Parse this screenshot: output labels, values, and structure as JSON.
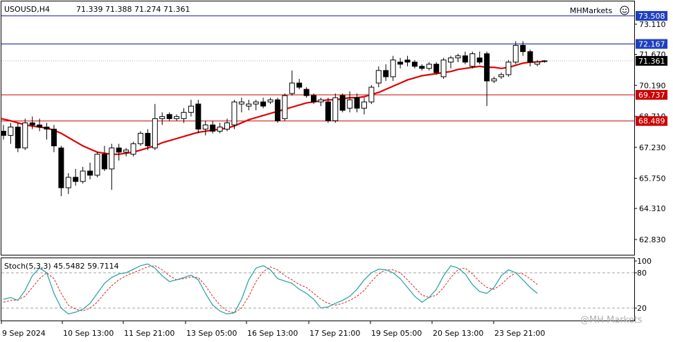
{
  "header": {
    "symbol_timeframe": "USOUSD,H4",
    "ohlc": "71.339 71.388 71.274 71.361",
    "broker": "MHMarkets"
  },
  "watermark": "@MH Markets",
  "colors": {
    "candle_body_bull": "#ffffff",
    "candle_body_bear": "#000000",
    "ma_line": "#e00000",
    "support_line": "#cc0000",
    "resistance_line": "#1010a0",
    "price_tag_blue": "#1f3fbf",
    "price_tag_red": "#cc0000",
    "price_tag_current": "#000000",
    "stoch_main": "#20a0a0",
    "stoch_signal": "#e02020"
  },
  "chart_data": {
    "type": "candlestick",
    "symbol": "USOUSD",
    "timeframe": "H4",
    "price_axis": {
      "ylim": [
        62.1,
        74.2
      ],
      "ticks": [
        "73.110",
        "71.670",
        "70.190",
        "68.710",
        "67.230",
        "65.750",
        "64.310",
        "62.830"
      ]
    },
    "time_axis": {
      "ticks": [
        "9 Sep 2024",
        "10 Sep 13:00",
        "11 Sep 21:00",
        "13 Sep 05:00",
        "16 Sep 13:00",
        "17 Sep 21:00",
        "19 Sep 05:00",
        "20 Sep 13:00",
        "23 Sep 21:00"
      ]
    },
    "horizontal_levels": [
      {
        "value": 73.508,
        "label": "73.508",
        "kind": "resistance"
      },
      {
        "value": 72.167,
        "label": "72.167",
        "kind": "resistance"
      },
      {
        "value": 69.737,
        "label": "69.737",
        "kind": "support"
      },
      {
        "value": 68.489,
        "label": "68.489",
        "kind": "support"
      }
    ],
    "current_price": {
      "value": 71.361,
      "label": "71.361"
    },
    "candles": [
      {
        "o": 68.0,
        "h": 68.3,
        "l": 67.6,
        "c": 67.8
      },
      {
        "o": 67.8,
        "h": 68.4,
        "l": 67.4,
        "c": 68.2
      },
      {
        "o": 68.2,
        "h": 68.4,
        "l": 67.0,
        "c": 67.2
      },
      {
        "o": 67.2,
        "h": 68.6,
        "l": 67.1,
        "c": 68.4
      },
      {
        "o": 68.4,
        "h": 68.7,
        "l": 68.1,
        "c": 68.3
      },
      {
        "o": 68.3,
        "h": 68.6,
        "l": 68.0,
        "c": 68.2
      },
      {
        "o": 68.2,
        "h": 68.4,
        "l": 67.6,
        "c": 68.1
      },
      {
        "o": 68.1,
        "h": 68.3,
        "l": 67.0,
        "c": 67.3
      },
      {
        "o": 67.2,
        "h": 67.3,
        "l": 64.9,
        "c": 65.3
      },
      {
        "o": 65.3,
        "h": 66.0,
        "l": 65.0,
        "c": 65.8
      },
      {
        "o": 65.8,
        "h": 66.2,
        "l": 65.4,
        "c": 65.6
      },
      {
        "o": 65.6,
        "h": 66.3,
        "l": 65.5,
        "c": 66.1
      },
      {
        "o": 66.1,
        "h": 66.5,
        "l": 65.7,
        "c": 65.9
      },
      {
        "o": 65.9,
        "h": 67.0,
        "l": 65.8,
        "c": 66.9
      },
      {
        "o": 66.9,
        "h": 67.3,
        "l": 66.1,
        "c": 66.2
      },
      {
        "o": 66.2,
        "h": 67.4,
        "l": 65.2,
        "c": 67.2
      },
      {
        "o": 67.2,
        "h": 67.4,
        "l": 66.6,
        "c": 67.0
      },
      {
        "o": 67.0,
        "h": 67.2,
        "l": 66.8,
        "c": 67.1
      },
      {
        "o": 66.9,
        "h": 67.5,
        "l": 66.8,
        "c": 67.4
      },
      {
        "o": 67.4,
        "h": 68.0,
        "l": 67.3,
        "c": 67.9
      },
      {
        "o": 67.9,
        "h": 68.1,
        "l": 67.1,
        "c": 67.3
      },
      {
        "o": 67.2,
        "h": 69.3,
        "l": 67.1,
        "c": 68.6
      },
      {
        "o": 68.6,
        "h": 68.9,
        "l": 68.3,
        "c": 68.7
      },
      {
        "o": 68.8,
        "h": 68.9,
        "l": 68.5,
        "c": 68.6
      },
      {
        "o": 68.6,
        "h": 68.8,
        "l": 68.5,
        "c": 68.7
      },
      {
        "o": 68.6,
        "h": 69.1,
        "l": 68.4,
        "c": 68.9
      },
      {
        "o": 68.9,
        "h": 69.5,
        "l": 68.7,
        "c": 69.2
      },
      {
        "o": 69.3,
        "h": 69.5,
        "l": 67.9,
        "c": 68.1
      },
      {
        "o": 68.1,
        "h": 68.5,
        "l": 67.8,
        "c": 68.3
      },
      {
        "o": 68.3,
        "h": 68.5,
        "l": 67.9,
        "c": 68.0
      },
      {
        "o": 68.0,
        "h": 68.4,
        "l": 67.9,
        "c": 68.2
      },
      {
        "o": 68.1,
        "h": 68.6,
        "l": 68.0,
        "c": 68.4
      },
      {
        "o": 68.3,
        "h": 69.5,
        "l": 68.1,
        "c": 69.4
      },
      {
        "o": 69.3,
        "h": 69.6,
        "l": 68.9,
        "c": 69.4
      },
      {
        "o": 69.2,
        "h": 69.5,
        "l": 69.0,
        "c": 69.3
      },
      {
        "o": 69.3,
        "h": 69.5,
        "l": 69.0,
        "c": 69.4
      },
      {
        "o": 69.4,
        "h": 69.6,
        "l": 69.1,
        "c": 69.2
      },
      {
        "o": 69.4,
        "h": 69.6,
        "l": 69.3,
        "c": 69.5
      },
      {
        "o": 69.5,
        "h": 69.6,
        "l": 68.4,
        "c": 68.5
      },
      {
        "o": 68.6,
        "h": 69.8,
        "l": 68.5,
        "c": 69.7
      },
      {
        "o": 69.8,
        "h": 70.9,
        "l": 69.7,
        "c": 70.3
      },
      {
        "o": 70.3,
        "h": 70.5,
        "l": 70.0,
        "c": 70.1
      },
      {
        "o": 70.0,
        "h": 70.1,
        "l": 69.6,
        "c": 69.7
      },
      {
        "o": 69.7,
        "h": 69.8,
        "l": 69.3,
        "c": 69.4
      },
      {
        "o": 69.4,
        "h": 69.6,
        "l": 69.2,
        "c": 69.5
      },
      {
        "o": 69.4,
        "h": 69.6,
        "l": 68.4,
        "c": 68.5
      },
      {
        "o": 68.5,
        "h": 69.8,
        "l": 68.4,
        "c": 69.6
      },
      {
        "o": 69.7,
        "h": 69.8,
        "l": 68.9,
        "c": 69.0
      },
      {
        "o": 69.1,
        "h": 69.9,
        "l": 68.9,
        "c": 69.5
      },
      {
        "o": 69.6,
        "h": 69.8,
        "l": 68.9,
        "c": 69.1
      },
      {
        "o": 69.1,
        "h": 69.6,
        "l": 68.8,
        "c": 69.4
      },
      {
        "o": 69.4,
        "h": 70.2,
        "l": 69.3,
        "c": 70.1
      },
      {
        "o": 70.3,
        "h": 71.1,
        "l": 70.1,
        "c": 70.9
      },
      {
        "o": 70.9,
        "h": 71.2,
        "l": 70.4,
        "c": 70.6
      },
      {
        "o": 70.6,
        "h": 71.6,
        "l": 70.4,
        "c": 71.4
      },
      {
        "o": 71.3,
        "h": 71.5,
        "l": 71.0,
        "c": 71.2
      },
      {
        "o": 71.4,
        "h": 71.6,
        "l": 71.1,
        "c": 71.3
      },
      {
        "o": 71.3,
        "h": 71.4,
        "l": 71.0,
        "c": 71.1
      },
      {
        "o": 71.1,
        "h": 71.2,
        "l": 70.9,
        "c": 71.0
      },
      {
        "o": 71.0,
        "h": 71.3,
        "l": 70.9,
        "c": 71.2
      },
      {
        "o": 71.2,
        "h": 71.3,
        "l": 70.7,
        "c": 70.8
      },
      {
        "o": 70.6,
        "h": 71.5,
        "l": 70.5,
        "c": 71.4
      },
      {
        "o": 71.3,
        "h": 71.6,
        "l": 71.0,
        "c": 71.5
      },
      {
        "o": 71.5,
        "h": 71.7,
        "l": 71.3,
        "c": 71.6
      },
      {
        "o": 71.6,
        "h": 71.8,
        "l": 71.2,
        "c": 71.3
      },
      {
        "o": 71.1,
        "h": 71.8,
        "l": 71.0,
        "c": 71.7
      },
      {
        "o": 71.5,
        "h": 71.8,
        "l": 71.2,
        "c": 71.3
      },
      {
        "o": 71.7,
        "h": 71.8,
        "l": 69.2,
        "c": 70.4
      },
      {
        "o": 70.4,
        "h": 70.6,
        "l": 70.3,
        "c": 70.5
      },
      {
        "o": 70.6,
        "h": 70.8,
        "l": 70.5,
        "c": 70.7
      },
      {
        "o": 70.7,
        "h": 71.4,
        "l": 70.6,
        "c": 71.3
      },
      {
        "o": 71.3,
        "h": 72.3,
        "l": 71.2,
        "c": 72.1
      },
      {
        "o": 72.1,
        "h": 72.3,
        "l": 71.6,
        "c": 71.8
      },
      {
        "o": 71.8,
        "h": 71.9,
        "l": 71.1,
        "c": 71.3
      },
      {
        "o": 71.2,
        "h": 71.4,
        "l": 71.1,
        "c": 71.3
      },
      {
        "o": 71.339,
        "h": 71.388,
        "l": 71.274,
        "c": 71.361
      }
    ],
    "moving_average": [
      68.6,
      68.5,
      68.4,
      68.3,
      68.25,
      68.2,
      68.15,
      68.05,
      67.9,
      67.7,
      67.5,
      67.3,
      67.15,
      67.0,
      66.95,
      66.9,
      66.9,
      66.95,
      67.0,
      67.1,
      67.2,
      67.3,
      67.45,
      67.55,
      67.65,
      67.75,
      67.85,
      67.95,
      68.0,
      68.05,
      68.1,
      68.15,
      68.25,
      68.4,
      68.55,
      68.65,
      68.75,
      68.85,
      68.95,
      69.05,
      69.15,
      69.25,
      69.35,
      69.4,
      69.45,
      69.5,
      69.5,
      69.55,
      69.6,
      69.6,
      69.65,
      69.75,
      69.85,
      70.0,
      70.15,
      70.3,
      70.45,
      70.55,
      70.65,
      70.7,
      70.75,
      70.8,
      70.85,
      70.95,
      71.0,
      71.05,
      71.1,
      71.05,
      71.05,
      71.0,
      71.05,
      71.15,
      71.25,
      71.3,
      71.3,
      71.35
    ],
    "stochastic": {
      "label": "Stoch(5,3,3) 45.5482 59.7114",
      "ylim": [
        0,
        100
      ],
      "ticks": [
        "100",
        "80",
        "20"
      ],
      "levels": [
        80,
        20
      ],
      "main": [
        35,
        38,
        33,
        50,
        75,
        88,
        80,
        45,
        20,
        10,
        13,
        18,
        28,
        45,
        62,
        72,
        78,
        80,
        86,
        92,
        95,
        88,
        75,
        65,
        68,
        72,
        76,
        68,
        45,
        25,
        15,
        10,
        12,
        35,
        68,
        88,
        92,
        85,
        70,
        66,
        62,
        52,
        45,
        35,
        20,
        22,
        28,
        33,
        40,
        52,
        68,
        80,
        86,
        85,
        80,
        70,
        55,
        40,
        30,
        38,
        52,
        75,
        92,
        88,
        78,
        60,
        48,
        45,
        55,
        75,
        85,
        80,
        68,
        55,
        45
      ],
      "signal": [
        30,
        33,
        34,
        40,
        55,
        70,
        80,
        70,
        45,
        25,
        18,
        15,
        20,
        30,
        45,
        58,
        68,
        75,
        80,
        85,
        90,
        92,
        85,
        75,
        68,
        70,
        73,
        72,
        58,
        40,
        25,
        15,
        12,
        20,
        40,
        65,
        82,
        90,
        85,
        75,
        68,
        60,
        55,
        45,
        35,
        28,
        25,
        28,
        33,
        40,
        50,
        65,
        78,
        85,
        85,
        80,
        68,
        55,
        42,
        38,
        42,
        55,
        72,
        85,
        88,
        78,
        65,
        55,
        52,
        60,
        72,
        80,
        78,
        70,
        60
      ]
    }
  }
}
